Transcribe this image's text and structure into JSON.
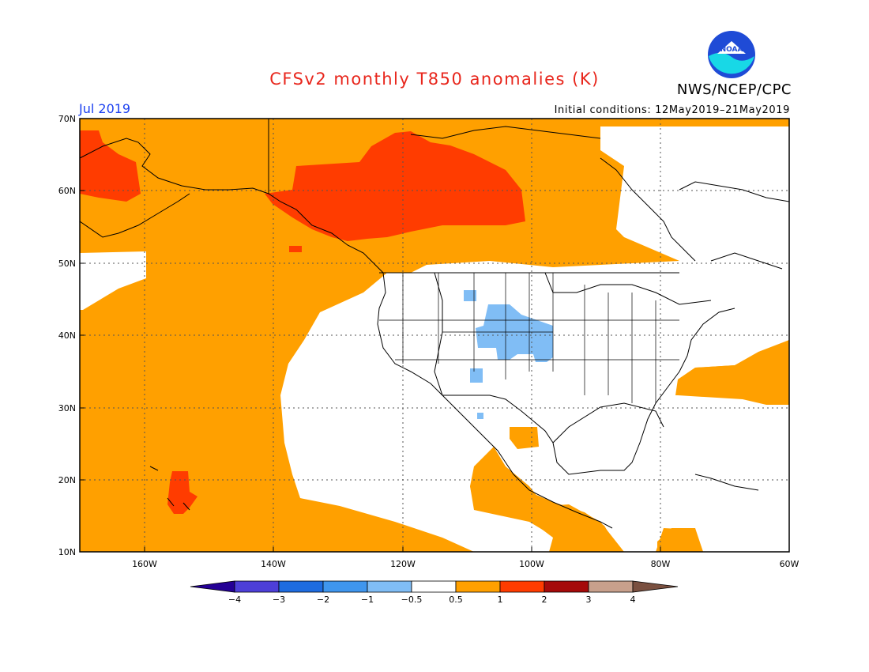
{
  "header": {
    "title": "CFSv2 monthly T850 anomalies (K)",
    "period": "Jul 2019",
    "initial_conditions": "Initial conditions: 12May2019–21May2019",
    "agency": "NWS/NCEP/CPC",
    "logo_text": "NOAA"
  },
  "map": {
    "lat_labels": [
      "70N",
      "60N",
      "50N",
      "40N",
      "30N",
      "20N",
      "10N"
    ],
    "lon_labels": [
      "160W",
      "140W",
      "120W",
      "100W",
      "80W",
      "60W"
    ],
    "lon_range": [
      -170,
      -60
    ],
    "lat_range": [
      10,
      70
    ]
  },
  "legend": {
    "tick_labels": [
      "−4",
      "−3",
      "−2",
      "−1",
      "−0.5",
      "0.5",
      "1",
      "2",
      "3",
      "4"
    ],
    "colors": [
      "#240095",
      "#4d3fd8",
      "#1e6ce0",
      "#3f96ee",
      "#80bdf5",
      "#ffffff",
      "#ffa000",
      "#ff3c00",
      "#a50a0a",
      "#c8a08c",
      "#7a5040"
    ]
  },
  "colors": {
    "title": "#e8261c",
    "period": "#1a3ff0",
    "warm_0_5_to_1": "#ffa000",
    "warm_1_to_2": "#ff3c00",
    "cool_neg1_to_neg0_5": "#80bdf5",
    "logo_blue": "#1f4bd6",
    "logo_cyan": "#18d8e6"
  }
}
